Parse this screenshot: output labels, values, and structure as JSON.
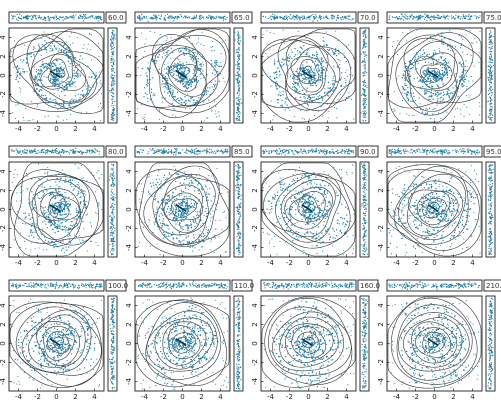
{
  "chart_data": [
    {
      "type": "scatter",
      "title": "60.0",
      "xlim": [
        -5,
        5
      ],
      "ylim": [
        -5,
        5
      ],
      "xticks": [
        "-4",
        "-2",
        "0",
        "2",
        "4"
      ],
      "yticks": [
        "-4",
        "-2",
        "0",
        "2",
        "4"
      ],
      "grid": false
    },
    {
      "type": "scatter",
      "title": "65.0",
      "xlim": [
        -5,
        5
      ],
      "ylim": [
        -5,
        5
      ],
      "xticks": [
        "-4",
        "-2",
        "0",
        "2",
        "4"
      ],
      "yticks": [
        "-4",
        "-2",
        "0",
        "2",
        "4"
      ],
      "grid": false
    },
    {
      "type": "scatter",
      "title": "70.0",
      "xlim": [
        -5,
        5
      ],
      "ylim": [
        -5,
        5
      ],
      "xticks": [
        "-4",
        "-2",
        "0",
        "2",
        "4"
      ],
      "yticks": [
        "-4",
        "-2",
        "0",
        "2",
        "4"
      ],
      "grid": false
    },
    {
      "type": "scatter",
      "title": "75.0",
      "xlim": [
        -5,
        5
      ],
      "ylim": [
        -5,
        5
      ],
      "xticks": [
        "-4",
        "-2",
        "0",
        "2",
        "4"
      ],
      "yticks": [
        "-4",
        "-2",
        "0",
        "2",
        "4"
      ],
      "grid": false
    },
    {
      "type": "scatter",
      "title": "80.0",
      "xlim": [
        -5,
        5
      ],
      "ylim": [
        -5,
        5
      ],
      "xticks": [
        "-4",
        "-2",
        "0",
        "2",
        "4"
      ],
      "yticks": [
        "-4",
        "-2",
        "0",
        "2",
        "4"
      ],
      "grid": false
    },
    {
      "type": "scatter",
      "title": "85.0",
      "xlim": [
        -5,
        5
      ],
      "ylim": [
        -5,
        5
      ],
      "xticks": [
        "-4",
        "-2",
        "0",
        "2",
        "4"
      ],
      "yticks": [
        "-4",
        "-2",
        "0",
        "2",
        "4"
      ],
      "grid": false
    },
    {
      "type": "scatter",
      "title": "90.0",
      "xlim": [
        -5,
        5
      ],
      "ylim": [
        -5,
        5
      ],
      "xticks": [
        "-4",
        "-2",
        "0",
        "2",
        "4"
      ],
      "yticks": [
        "-4",
        "-2",
        "0",
        "2",
        "4"
      ],
      "grid": false
    },
    {
      "type": "scatter",
      "title": "95.0",
      "xlim": [
        -5,
        5
      ],
      "ylim": [
        -5,
        5
      ],
      "xticks": [
        "-4",
        "-2",
        "0",
        "2",
        "4"
      ],
      "yticks": [
        "-4",
        "-2",
        "0",
        "2",
        "4"
      ],
      "grid": false
    },
    {
      "type": "scatter",
      "title": "100.0",
      "xlim": [
        -5,
        5
      ],
      "ylim": [
        -5,
        5
      ],
      "xticks": [
        "-4",
        "-2",
        "0",
        "2",
        "4"
      ],
      "yticks": [
        "-4",
        "-2",
        "0",
        "2",
        "4"
      ],
      "grid": false
    },
    {
      "type": "scatter",
      "title": "110.0",
      "xlim": [
        -5,
        5
      ],
      "ylim": [
        -5,
        5
      ],
      "xticks": [
        "-4",
        "-2",
        "0",
        "2",
        "4"
      ],
      "yticks": [
        "-4",
        "-2",
        "0",
        "2",
        "4"
      ],
      "grid": false
    },
    {
      "type": "scatter",
      "title": "160.0",
      "xlim": [
        -5,
        5
      ],
      "ylim": [
        -5,
        5
      ],
      "xticks": [
        "-4",
        "-2",
        "0",
        "2",
        "4"
      ],
      "yticks": [
        "-4",
        "-2",
        "0",
        "2",
        "4"
      ],
      "grid": false
    },
    {
      "type": "scatter",
      "title": "210.0",
      "xlim": [
        -5,
        5
      ],
      "ylim": [
        -5,
        5
      ],
      "xticks": [
        "-4",
        "-2",
        "0",
        "2",
        "4"
      ],
      "yticks": [
        "-4",
        "-2",
        "0",
        "2",
        "4"
      ],
      "grid": false
    }
  ],
  "colors": {
    "points": "#1a7fa8",
    "contours": "#333333",
    "axes": "#000000"
  }
}
